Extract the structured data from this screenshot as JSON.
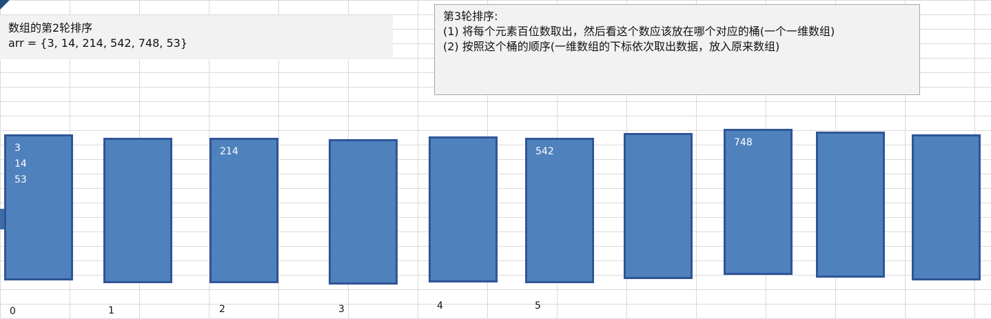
{
  "note_left": {
    "line1": "数组的第2轮排序",
    "line2": "arr = {3, 14,  214, 542,  748, 53}"
  },
  "note_right": {
    "title": "第3轮排序:",
    "step1": "(1) 将每个元素百位数取出，然后看这个数应该放在哪个对应的桶(一个一维数组)",
    "step2": "(2) 按照这个桶的顺序(一维数组的下标依次取出数据，放入原来数组)"
  },
  "buckets": [
    {
      "values": [
        "3",
        "14",
        "53"
      ]
    },
    {
      "values": []
    },
    {
      "values": [
        "214"
      ]
    },
    {
      "values": []
    },
    {
      "values": []
    },
    {
      "values": [
        "542"
      ]
    },
    {
      "values": []
    },
    {
      "values": [
        "748"
      ]
    },
    {
      "values": []
    },
    {
      "values": []
    }
  ],
  "indices": [
    "0",
    "1",
    "2",
    "3",
    "4",
    "5"
  ],
  "colors": {
    "bucket_fill": "#4f81bd",
    "bucket_border": "#2f5597",
    "note_bg": "#f2f2f2"
  }
}
